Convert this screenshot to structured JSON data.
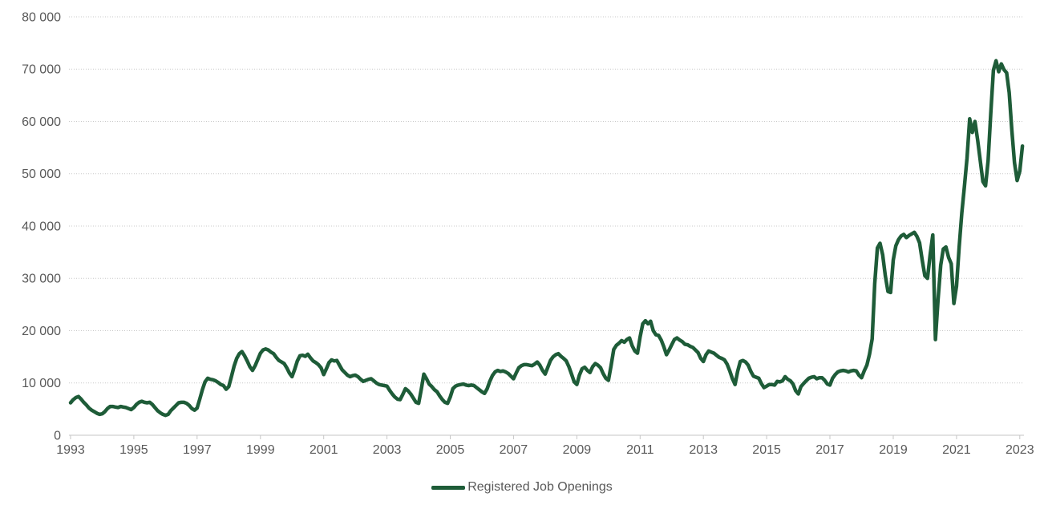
{
  "chart_data": {
    "type": "line",
    "title": "",
    "xlabel": "",
    "ylabel": "",
    "grid": "horizontal-dotted",
    "legend_position": "bottom-center",
    "background": "#ffffff",
    "text_color": "#595959",
    "gridline_color": "#c9c9c9",
    "axis_color": "#c6c6c6",
    "ylim": [
      0,
      80000
    ],
    "x_start": 1993,
    "x_interval_months": 1,
    "x_ticks": [
      "1993",
      "1995",
      "1997",
      "1999",
      "2001",
      "2003",
      "2005",
      "2007",
      "2009",
      "2011",
      "2013",
      "2015",
      "2017",
      "2019",
      "2021",
      "2023"
    ],
    "y_ticks": [
      {
        "value": 0,
        "label": "0"
      },
      {
        "value": 10000,
        "label": "10 000"
      },
      {
        "value": 20000,
        "label": "20 000"
      },
      {
        "value": 30000,
        "label": "30 000"
      },
      {
        "value": 40000,
        "label": "40 000"
      },
      {
        "value": 50000,
        "label": "50 000"
      },
      {
        "value": 60000,
        "label": "60 000"
      },
      {
        "value": 70000,
        "label": "70 000"
      },
      {
        "value": 80000,
        "label": "80 000"
      }
    ],
    "series": [
      {
        "name": "Registered Job Openings",
        "color": "#1e5c38",
        "stroke_width": 4.5,
        "values": [
          6200,
          6800,
          7200,
          7400,
          6900,
          6300,
          5800,
          5200,
          4800,
          4500,
          4200,
          4000,
          4100,
          4500,
          5100,
          5500,
          5500,
          5400,
          5300,
          5500,
          5400,
          5300,
          5100,
          4900,
          5300,
          5900,
          6300,
          6500,
          6300,
          6200,
          6300,
          5900,
          5300,
          4700,
          4300,
          4000,
          3800,
          4000,
          4700,
          5200,
          5700,
          6200,
          6300,
          6300,
          6100,
          5700,
          5100,
          4800,
          5200,
          6900,
          8700,
          10200,
          10900,
          10700,
          10600,
          10400,
          10100,
          9700,
          9500,
          8800,
          9300,
          11200,
          13200,
          14700,
          15600,
          16000,
          15200,
          14200,
          13100,
          12400,
          13300,
          14500,
          15700,
          16300,
          16500,
          16300,
          15900,
          15600,
          14900,
          14300,
          14000,
          13700,
          12900,
          11900,
          11200,
          12600,
          14200,
          15200,
          15300,
          15100,
          15500,
          14800,
          14200,
          13900,
          13500,
          12900,
          11600,
          12700,
          13900,
          14400,
          14200,
          14300,
          13400,
          12500,
          12000,
          11500,
          11200,
          11400,
          11500,
          11200,
          10700,
          10300,
          10500,
          10700,
          10800,
          10400,
          10000,
          9700,
          9600,
          9500,
          9400,
          8600,
          7900,
          7300,
          6900,
          6800,
          7800,
          8900,
          8500,
          7900,
          7100,
          6300,
          6100,
          8700,
          11700,
          10800,
          9800,
          9300,
          8700,
          8300,
          7500,
          6800,
          6300,
          6100,
          7300,
          8900,
          9400,
          9600,
          9700,
          9800,
          9600,
          9500,
          9600,
          9500,
          9100,
          8700,
          8300,
          8000,
          8900,
          10300,
          11400,
          12100,
          12400,
          12200,
          12300,
          12100,
          11800,
          11300,
          10800,
          11900,
          12900,
          13300,
          13500,
          13500,
          13400,
          13300,
          13600,
          14000,
          13400,
          12400,
          11700,
          13000,
          14300,
          15000,
          15400,
          15600,
          15100,
          14700,
          14200,
          13100,
          11700,
          10200,
          9700,
          11500,
          12700,
          13000,
          12400,
          12000,
          13100,
          13700,
          13400,
          12900,
          11800,
          10900,
          10500,
          13300,
          16400,
          17200,
          17600,
          18100,
          17800,
          18300,
          18600,
          17100,
          16100,
          15700,
          18800,
          21300,
          21900,
          21300,
          21800,
          20000,
          19200,
          19100,
          18200,
          16900,
          15400,
          16300,
          17300,
          18300,
          18600,
          18200,
          17900,
          17400,
          17300,
          17000,
          16800,
          16300,
          15800,
          14700,
          14100,
          15400,
          16100,
          15900,
          15700,
          15300,
          14900,
          14700,
          14400,
          13600,
          12300,
          10800,
          9700,
          12200,
          14100,
          14300,
          14000,
          13400,
          12200,
          11300,
          11100,
          10900,
          9900,
          9100,
          9400,
          9700,
          9700,
          9600,
          10300,
          10200,
          10400,
          11200,
          10700,
          10400,
          9800,
          8500,
          7900,
          9300,
          9900,
          10400,
          10900,
          11100,
          11200,
          10800,
          11000,
          11000,
          10500,
          9800,
          9600,
          10900,
          11600,
          12100,
          12300,
          12400,
          12300,
          12100,
          12300,
          12400,
          12300,
          11500,
          11000,
          12300,
          13400,
          15500,
          18400,
          29000,
          35800,
          36700,
          34500,
          30500,
          27500,
          27300,
          33500,
          36200,
          37400,
          38100,
          38400,
          37800,
          38200,
          38500,
          38800,
          38000,
          36800,
          33500,
          30500,
          30000,
          34500,
          38300,
          18300,
          26000,
          32500,
          35600,
          36000,
          34000,
          32800,
          25200,
          28500,
          36000,
          42500,
          47500,
          53000,
          60500,
          57900,
          60000,
          56500,
          52500,
          48500,
          47700,
          52500,
          61500,
          69800,
          71600,
          69500,
          71000,
          69900,
          69300,
          65500,
          58300,
          52100,
          48700,
          50500,
          55300
        ]
      }
    ]
  }
}
